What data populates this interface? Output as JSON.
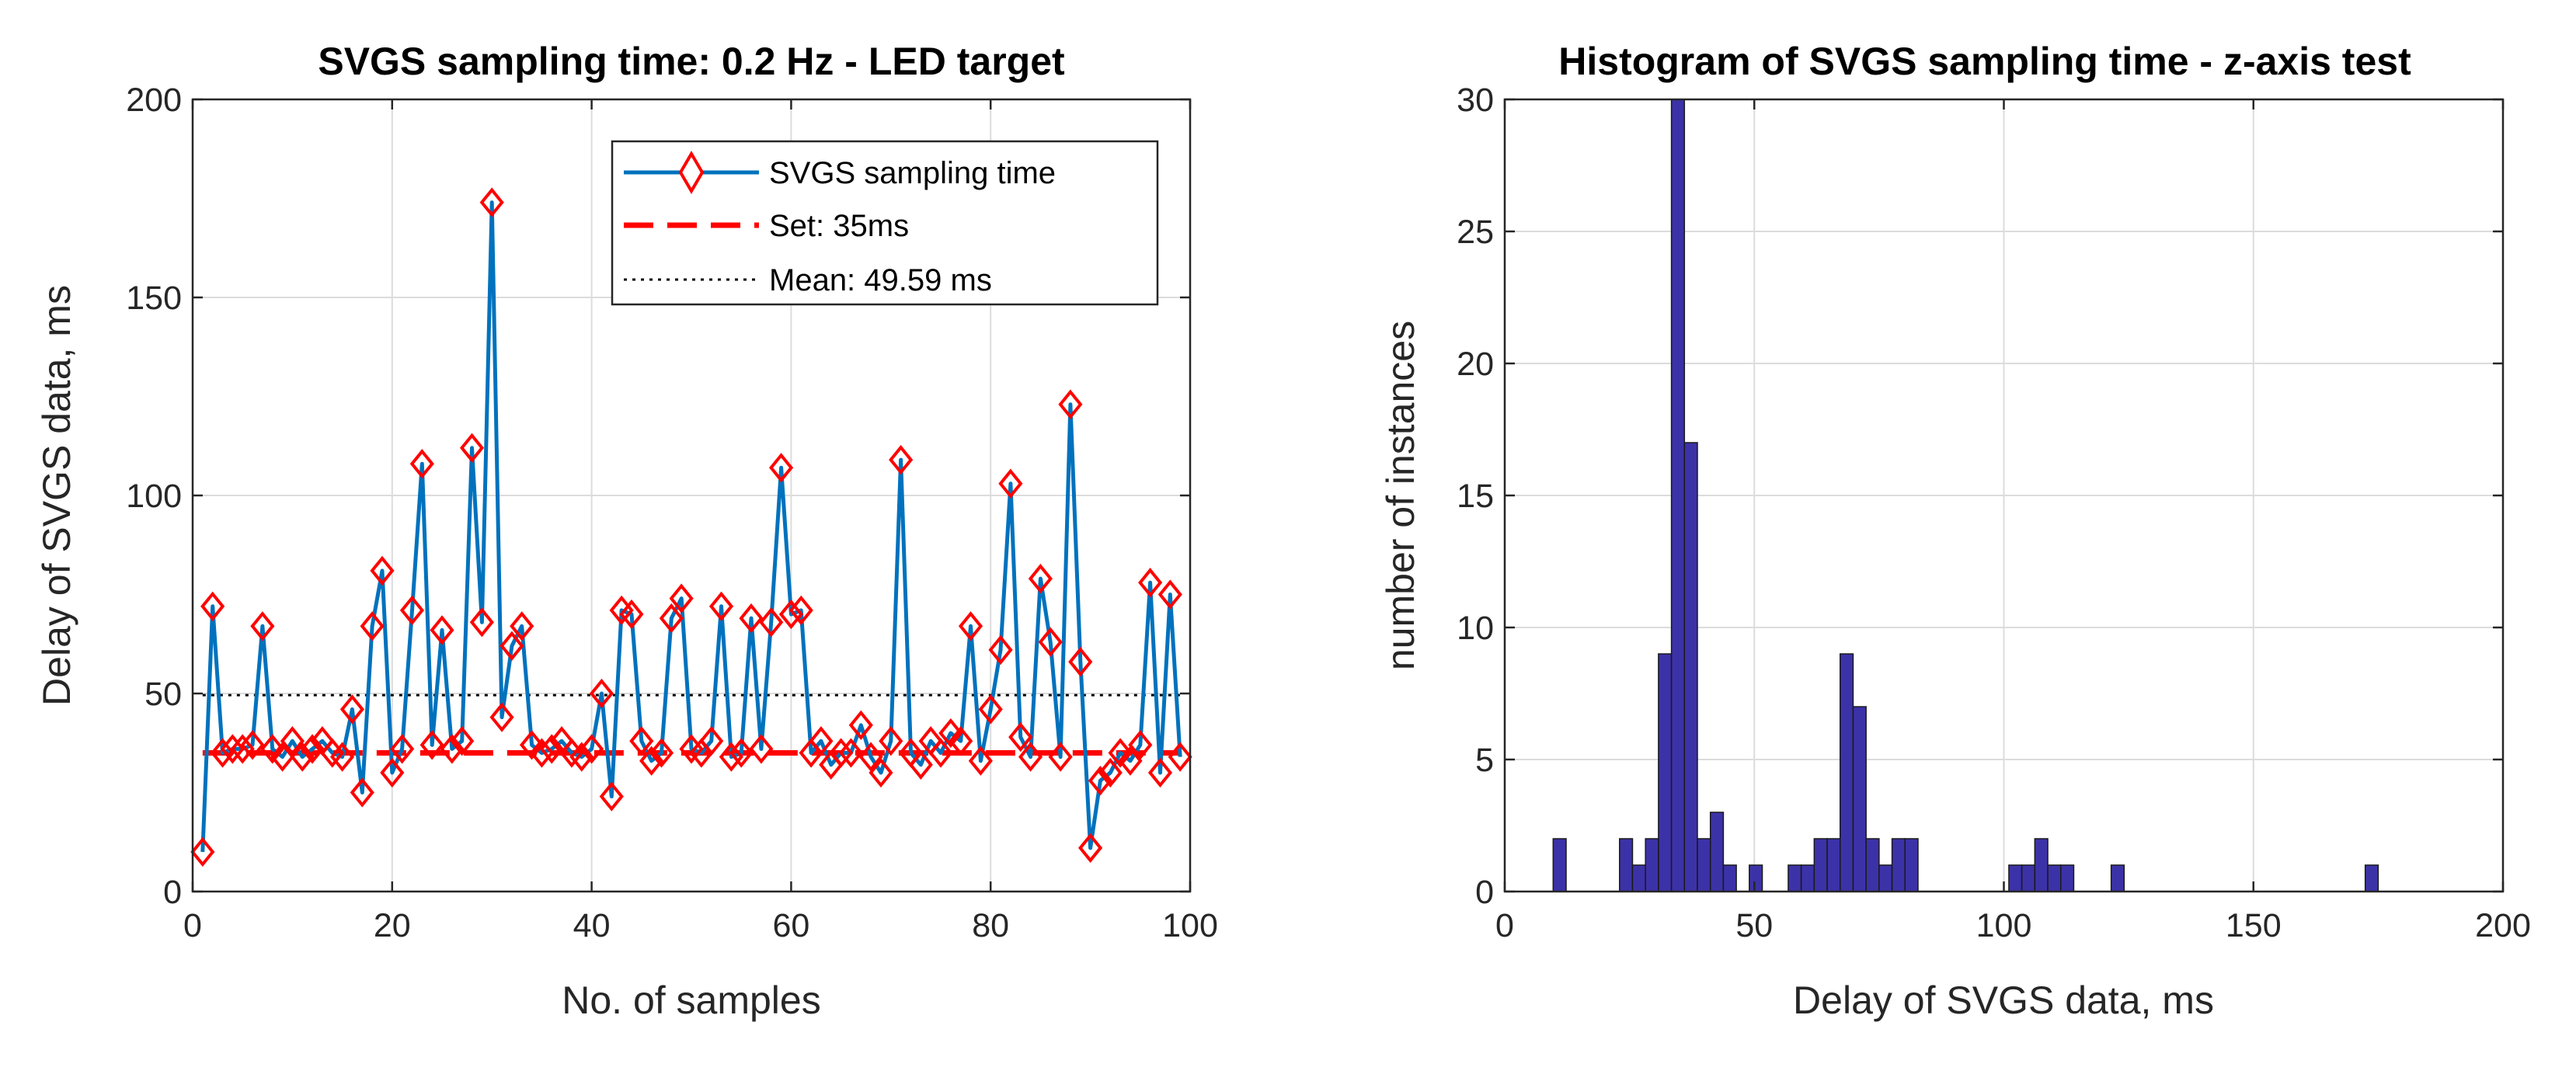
{
  "chart_data": [
    {
      "type": "line",
      "title": "SVGS sampling time: 0.2 Hz - LED target",
      "xlabel": "No. of samples",
      "ylabel": "Delay of SVGS data, ms",
      "xlim": [
        0,
        100
      ],
      "ylim": [
        0,
        200
      ],
      "xticks": [
        0,
        20,
        40,
        60,
        80,
        100
      ],
      "yticks": [
        0,
        50,
        100,
        150,
        200
      ],
      "grid": true,
      "legend_position": "top-right",
      "series": [
        {
          "name": "SVGS sampling time",
          "color": "#0072BD",
          "marker": "diamond",
          "marker_color": "#FF0000",
          "x": [
            1,
            2,
            3,
            4,
            5,
            6,
            7,
            8,
            9,
            10,
            11,
            12,
            13,
            14,
            15,
            16,
            17,
            18,
            19,
            20,
            21,
            22,
            23,
            24,
            25,
            26,
            27,
            28,
            29,
            30,
            31,
            32,
            33,
            34,
            35,
            36,
            37,
            38,
            39,
            40,
            41,
            42,
            43,
            44,
            45,
            46,
            47,
            48,
            49,
            50,
            51,
            52,
            53,
            54,
            55,
            56,
            57,
            58,
            59,
            60,
            61,
            62,
            63,
            64,
            65,
            66,
            67,
            68,
            69,
            70,
            71,
            72,
            73,
            74,
            75,
            76,
            77,
            78,
            79,
            80,
            81,
            82,
            83,
            84,
            85,
            86,
            87,
            88,
            89,
            90,
            91,
            92,
            93,
            94,
            95,
            96,
            97,
            98,
            99
          ],
          "y": [
            10,
            72,
            35,
            36,
            36,
            37,
            67,
            36,
            34,
            38,
            34,
            36,
            38,
            35,
            34,
            46,
            25,
            67,
            81,
            30,
            36,
            71,
            108,
            37,
            66,
            36,
            38,
            112,
            68,
            174,
            44,
            62,
            67,
            37,
            35,
            36,
            38,
            35,
            34,
            36,
            50,
            24,
            71,
            70,
            38,
            33,
            35,
            69,
            74,
            36,
            35,
            38,
            72,
            34,
            35,
            69,
            36,
            68,
            107,
            70,
            71,
            35,
            38,
            32,
            35,
            35,
            42,
            34,
            30,
            38,
            109,
            35,
            32,
            38,
            35,
            40,
            38,
            67,
            33,
            46,
            61,
            103,
            39,
            34,
            79,
            63,
            34,
            123,
            58,
            11,
            28,
            30,
            35,
            33,
            37,
            78,
            30,
            75,
            34
          ]
        },
        {
          "name": "Set: 35ms",
          "color": "#FF0000",
          "style": "dashed",
          "x": [
            1,
            99
          ],
          "y": [
            35,
            35
          ]
        },
        {
          "name": "Mean: 49.59 ms",
          "color": "#000000",
          "style": "dotted",
          "x": [
            1,
            99
          ],
          "y": [
            49.59,
            49.59
          ]
        }
      ]
    },
    {
      "type": "bar",
      "title": "Histogram of SVGS sampling time - z-axis test",
      "xlabel": "Delay of SVGS data, ms",
      "ylabel": "number of instances",
      "xlim": [
        0,
        200
      ],
      "ylim": [
        0,
        30
      ],
      "xticks": [
        0,
        50,
        100,
        150,
        200
      ],
      "yticks": [
        0,
        5,
        10,
        15,
        20,
        25,
        30
      ],
      "grid": true,
      "bar_color": "#3C32A8",
      "bin_width": 2.6,
      "bins": [
        {
          "x": 11,
          "count": 2
        },
        {
          "x": 24.3,
          "count": 2
        },
        {
          "x": 26.9,
          "count": 1
        },
        {
          "x": 29.5,
          "count": 2
        },
        {
          "x": 32.1,
          "count": 9
        },
        {
          "x": 34.7,
          "count": 30
        },
        {
          "x": 37.3,
          "count": 17
        },
        {
          "x": 39.9,
          "count": 2
        },
        {
          "x": 42.5,
          "count": 3
        },
        {
          "x": 45.1,
          "count": 1
        },
        {
          "x": 50.3,
          "count": 1
        },
        {
          "x": 58.1,
          "count": 1
        },
        {
          "x": 60.7,
          "count": 1
        },
        {
          "x": 63.3,
          "count": 2
        },
        {
          "x": 65.9,
          "count": 2
        },
        {
          "x": 68.5,
          "count": 9
        },
        {
          "x": 71.1,
          "count": 7
        },
        {
          "x": 73.7,
          "count": 2
        },
        {
          "x": 76.3,
          "count": 1
        },
        {
          "x": 78.9,
          "count": 2
        },
        {
          "x": 81.5,
          "count": 2
        },
        {
          "x": 102.3,
          "count": 1
        },
        {
          "x": 104.9,
          "count": 1
        },
        {
          "x": 107.5,
          "count": 2
        },
        {
          "x": 110.1,
          "count": 1
        },
        {
          "x": 112.7,
          "count": 1
        },
        {
          "x": 122.8,
          "count": 1
        },
        {
          "x": 173.7,
          "count": 1
        }
      ]
    }
  ]
}
